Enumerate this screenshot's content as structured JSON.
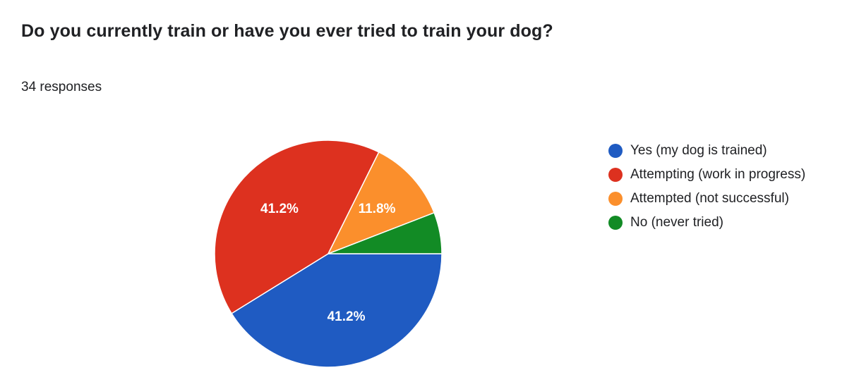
{
  "question": {
    "title": "Do you currently train or have you ever tried to train your dog?",
    "response_count": "34 responses"
  },
  "chart_data": {
    "type": "pie",
    "total_responses": 34,
    "slices": [
      {
        "label": "Yes (my dog is trained)",
        "count": 14,
        "percent": 41.2,
        "percent_label": "41.2%",
        "color": "#1f5bc2"
      },
      {
        "label": "Attempting (work in progress)",
        "count": 14,
        "percent": 41.2,
        "percent_label": "41.2%",
        "color": "#dd311f"
      },
      {
        "label": "Attempted (not successful)",
        "count": 4,
        "percent": 11.8,
        "percent_label": "11.8%",
        "color": "#fb8f2c"
      },
      {
        "label": "No (never tried)",
        "count": 2,
        "percent": 5.9,
        "percent_label": "",
        "color": "#128b25"
      }
    ],
    "legend_position": "right",
    "start_direction": "east, clockwise"
  }
}
